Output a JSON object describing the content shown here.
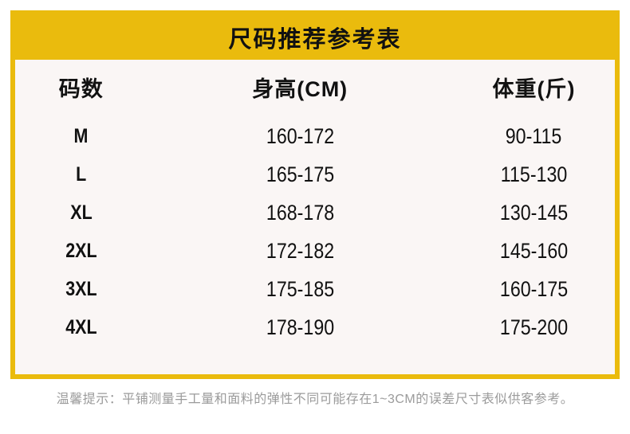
{
  "title": "尺码推荐参考表",
  "table": {
    "headers": [
      "码数",
      "身高(CM)",
      "体重(斤)"
    ],
    "rows": [
      {
        "size": "M",
        "height": "160-172",
        "weight": "90-115"
      },
      {
        "size": "L",
        "height": "165-175",
        "weight": "115-130"
      },
      {
        "size": "XL",
        "height": "168-178",
        "weight": "130-145"
      },
      {
        "size": "2XL",
        "height": "172-182",
        "weight": "145-160"
      },
      {
        "size": "3XL",
        "height": "175-185",
        "weight": "160-175"
      },
      {
        "size": "4XL",
        "height": "178-190",
        "weight": "175-200"
      }
    ]
  },
  "note": "温馨提示：平铺测量手工量和面料的弹性不同可能存在1~3CM的误差尺寸表似供客参考。",
  "colors": {
    "accent_yellow": "#EABB0D",
    "panel_background": "#FAF6F5",
    "text_black": "#111111",
    "note_gray": "#9B9B9B"
  },
  "chart_data": {
    "type": "table",
    "title": "尺码推荐参考表",
    "columns": [
      "码数",
      "身高(CM)",
      "体重(斤)"
    ],
    "rows": [
      [
        "M",
        "160-172",
        "90-115"
      ],
      [
        "L",
        "165-175",
        "115-130"
      ],
      [
        "XL",
        "168-178",
        "130-145"
      ],
      [
        "2XL",
        "172-182",
        "145-160"
      ],
      [
        "3XL",
        "175-185",
        "160-175"
      ],
      [
        "4XL",
        "178-190",
        "175-200"
      ]
    ],
    "footnote": "温馨提示：平铺测量手工量和面料的弹性不同可能存在1~3CM的误差尺寸表似供客参考。"
  }
}
